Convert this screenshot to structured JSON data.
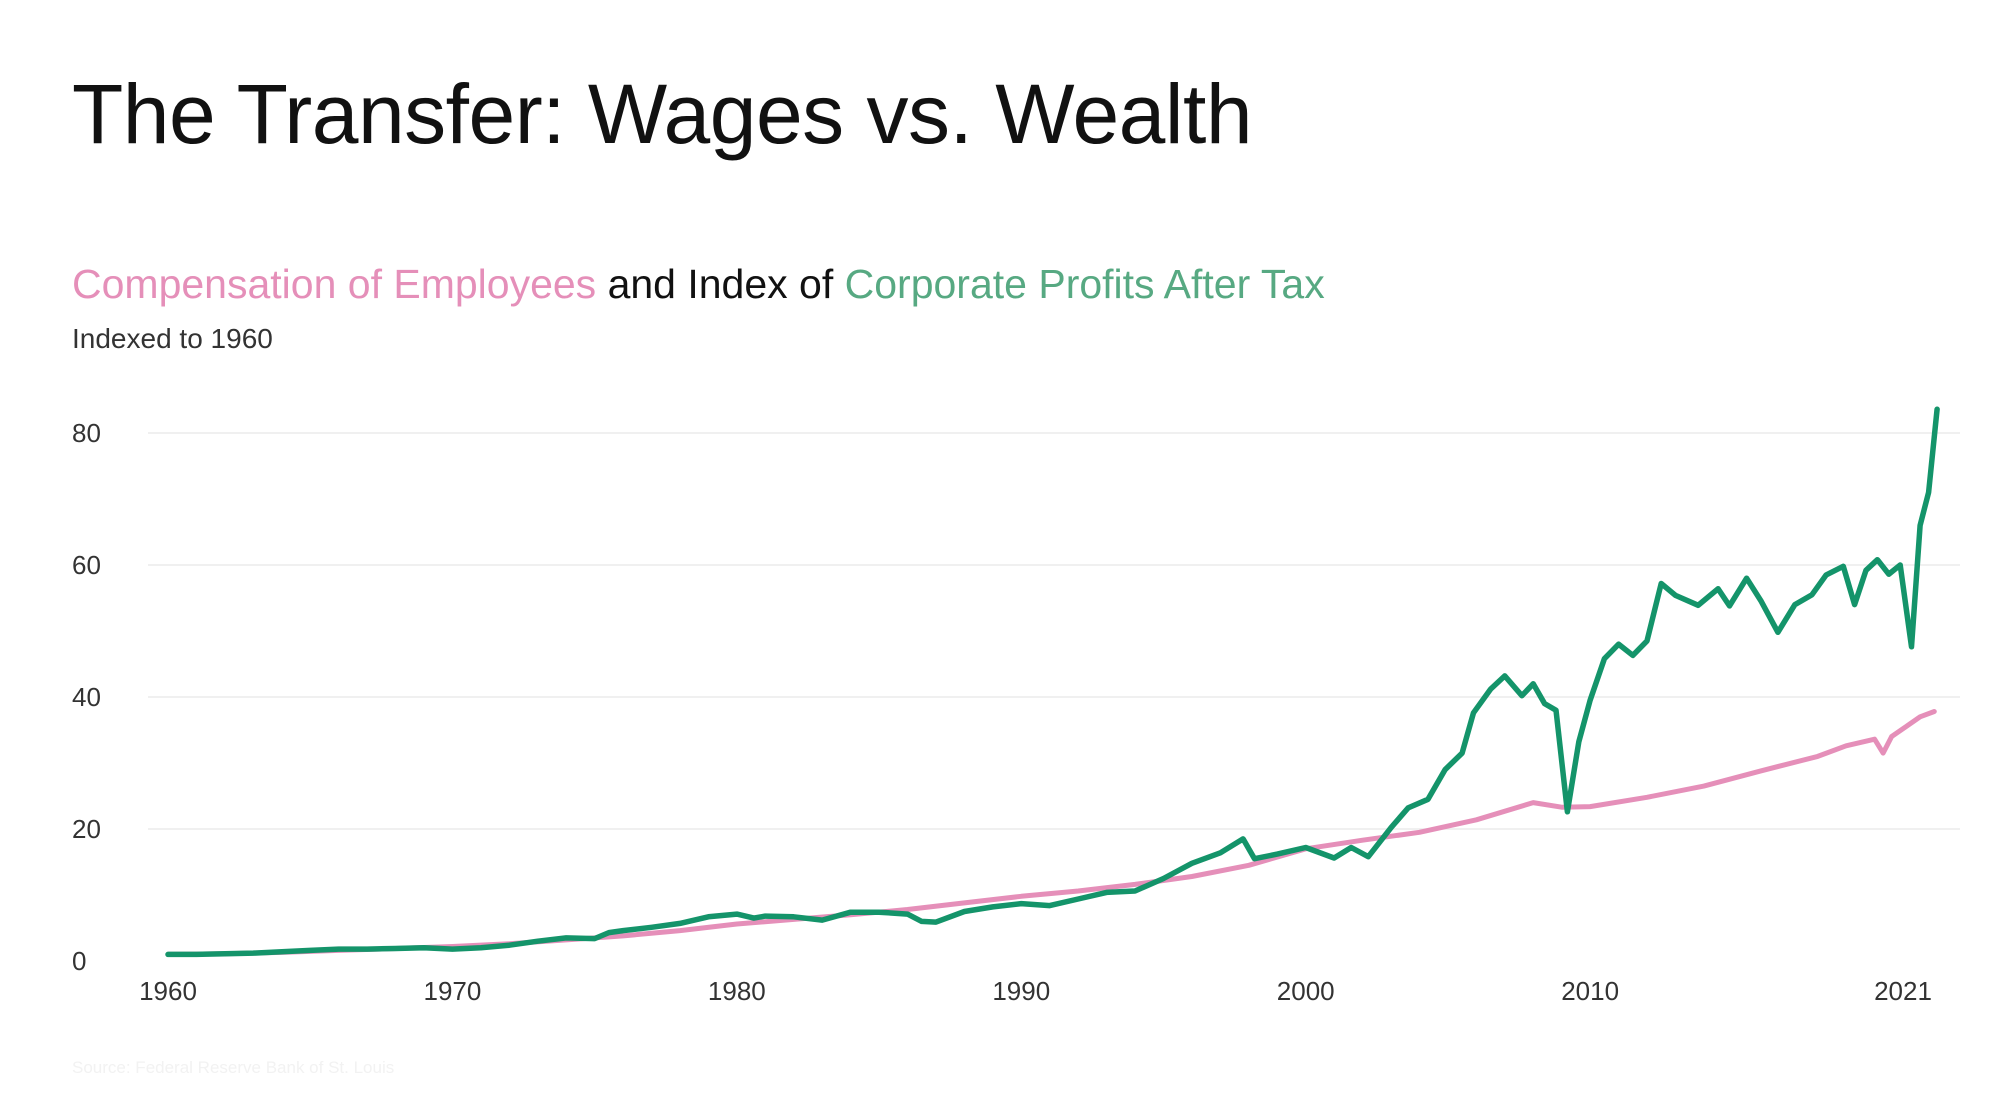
{
  "title": "The Transfer: Wages vs. Wealth",
  "heading": {
    "series_a": "Compensation of Employees",
    "joiner": " and Index of ",
    "series_b": "Corporate Profits After Tax"
  },
  "subtitle": "Indexed to 1960",
  "source": "Source: Federal Reserve Bank of St. Louis",
  "colors": {
    "compensation": "#e58fb9",
    "profits": "#14946a",
    "gridline": "#ebebeb",
    "tick_text": "#333333"
  },
  "chart_data": {
    "type": "line",
    "xlim": [
      1960,
      2022.2
    ],
    "ylim": [
      0,
      80
    ],
    "y_ticks": [
      0,
      20,
      40,
      60,
      80
    ],
    "x_ticks": [
      {
        "value": 1960,
        "label": "1960"
      },
      {
        "value": 1970,
        "label": "1970"
      },
      {
        "value": 1980,
        "label": "1980"
      },
      {
        "value": 1990,
        "label": "1990"
      },
      {
        "value": 2000,
        "label": "2000"
      },
      {
        "value": 2010,
        "label": "2010"
      },
      {
        "value": 2021,
        "label": "2021"
      }
    ],
    "grid": true,
    "series": [
      {
        "name": "Compensation of Employees",
        "color": "#e58fb9",
        "points": [
          [
            1960,
            1.0
          ],
          [
            1962,
            1.1
          ],
          [
            1964,
            1.3
          ],
          [
            1966,
            1.6
          ],
          [
            1968,
            1.9
          ],
          [
            1970,
            2.2
          ],
          [
            1972,
            2.6
          ],
          [
            1974,
            3.2
          ],
          [
            1976,
            3.8
          ],
          [
            1978,
            4.6
          ],
          [
            1980,
            5.6
          ],
          [
            1982,
            6.3
          ],
          [
            1984,
            7.0
          ],
          [
            1986,
            7.8
          ],
          [
            1988,
            8.8
          ],
          [
            1990,
            9.8
          ],
          [
            1992,
            10.6
          ],
          [
            1994,
            11.6
          ],
          [
            1996,
            12.8
          ],
          [
            1998,
            14.5
          ],
          [
            2000,
            17.0
          ],
          [
            2002,
            18.3
          ],
          [
            2004,
            19.5
          ],
          [
            2006,
            21.4
          ],
          [
            2008,
            24.0
          ],
          [
            2009,
            23.3
          ],
          [
            2010,
            23.4
          ],
          [
            2012,
            24.8
          ],
          [
            2014,
            26.5
          ],
          [
            2016,
            28.8
          ],
          [
            2018,
            31.0
          ],
          [
            2019,
            32.6
          ],
          [
            2020,
            33.6
          ],
          [
            2020.3,
            31.5
          ],
          [
            2020.6,
            34.0
          ],
          [
            2021,
            35.2
          ],
          [
            2021.6,
            37.0
          ],
          [
            2022.1,
            37.8
          ]
        ]
      },
      {
        "name": "Corporate Profits After Tax",
        "color": "#14946a",
        "points": [
          [
            1960,
            1.0
          ],
          [
            1961,
            1.0
          ],
          [
            1962,
            1.1
          ],
          [
            1963,
            1.2
          ],
          [
            1964,
            1.4
          ],
          [
            1965,
            1.6
          ],
          [
            1966,
            1.8
          ],
          [
            1967,
            1.8
          ],
          [
            1968,
            1.9
          ],
          [
            1969,
            2.0
          ],
          [
            1970,
            1.8
          ],
          [
            1971,
            2.0
          ],
          [
            1972,
            2.4
          ],
          [
            1973,
            3.0
          ],
          [
            1974,
            3.5
          ],
          [
            1975,
            3.4
          ],
          [
            1975.5,
            4.3
          ],
          [
            1976,
            4.6
          ],
          [
            1977,
            5.1
          ],
          [
            1978,
            5.7
          ],
          [
            1979,
            6.7
          ],
          [
            1980,
            7.1
          ],
          [
            1980.6,
            6.5
          ],
          [
            1981,
            6.8
          ],
          [
            1982,
            6.7
          ],
          [
            1983,
            6.2
          ],
          [
            1984,
            7.4
          ],
          [
            1985,
            7.4
          ],
          [
            1986,
            7.1
          ],
          [
            1986.5,
            6.0
          ],
          [
            1987,
            5.9
          ],
          [
            1988,
            7.5
          ],
          [
            1989,
            8.2
          ],
          [
            1990,
            8.7
          ],
          [
            1991,
            8.4
          ],
          [
            1992,
            9.4
          ],
          [
            1993,
            10.4
          ],
          [
            1994,
            10.6
          ],
          [
            1995,
            12.5
          ],
          [
            1996,
            14.8
          ],
          [
            1997,
            16.4
          ],
          [
            1997.8,
            18.5
          ],
          [
            1998.2,
            15.5
          ],
          [
            1999,
            16.2
          ],
          [
            2000,
            17.2
          ],
          [
            2001,
            15.6
          ],
          [
            2001.6,
            17.2
          ],
          [
            2002.2,
            15.8
          ],
          [
            2003,
            20.2
          ],
          [
            2003.6,
            23.2
          ],
          [
            2004.3,
            24.5
          ],
          [
            2004.9,
            29.0
          ],
          [
            2005.5,
            31.5
          ],
          [
            2005.9,
            37.6
          ],
          [
            2006.5,
            41.2
          ],
          [
            2007,
            43.2
          ],
          [
            2007.6,
            40.2
          ],
          [
            2008,
            42.0
          ],
          [
            2008.4,
            39.0
          ],
          [
            2008.8,
            38.0
          ],
          [
            2009.2,
            22.6
          ],
          [
            2009.6,
            33.2
          ],
          [
            2010,
            39.5
          ],
          [
            2010.5,
            45.8
          ],
          [
            2011,
            48.0
          ],
          [
            2011.5,
            46.3
          ],
          [
            2012,
            48.5
          ],
          [
            2012.5,
            57.2
          ],
          [
            2013,
            55.4
          ],
          [
            2013.8,
            53.9
          ],
          [
            2014.5,
            56.4
          ],
          [
            2014.9,
            53.8
          ],
          [
            2015.5,
            58.0
          ],
          [
            2016,
            54.6
          ],
          [
            2016.6,
            49.8
          ],
          [
            2017.2,
            54.0
          ],
          [
            2017.8,
            55.5
          ],
          [
            2018.3,
            58.5
          ],
          [
            2018.9,
            59.8
          ],
          [
            2019.3,
            54.0
          ],
          [
            2019.7,
            59.2
          ],
          [
            2020.1,
            60.8
          ],
          [
            2020.5,
            58.6
          ],
          [
            2020.9,
            60.0
          ],
          [
            2021.3,
            47.6
          ],
          [
            2021.6,
            66.0
          ],
          [
            2021.9,
            71.0
          ],
          [
            2022.2,
            83.6
          ]
        ]
      }
    ]
  }
}
